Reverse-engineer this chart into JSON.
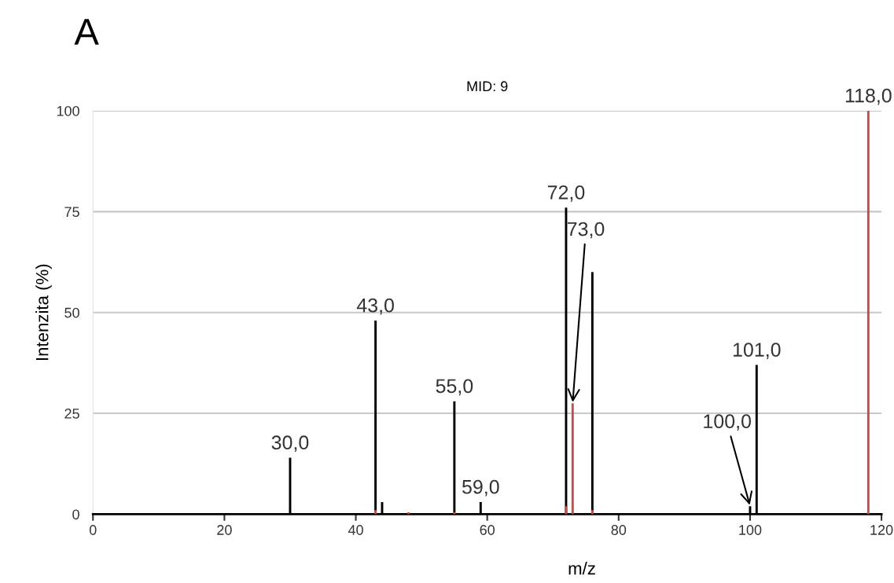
{
  "chart_data": {
    "type": "bar",
    "title": "MID: 9",
    "xlabel": "m/z",
    "ylabel": "Intenzita (%)",
    "series": [
      {
        "color": "#000000",
        "x": [
          30,
          43,
          44,
          55,
          59,
          72,
          76,
          100,
          101
        ],
        "values": [
          14,
          48,
          3,
          28,
          3,
          76,
          60,
          2,
          37
        ]
      },
      {
        "color": "#c0504d",
        "x": [
          43,
          48,
          55,
          72,
          73,
          76,
          118
        ],
        "values": [
          1,
          0.5,
          0.5,
          2,
          27.5,
          1,
          100
        ]
      }
    ],
    "xlim": [
      0,
      120
    ],
    "xticks": [
      0,
      20,
      40,
      60,
      80,
      100,
      120
    ],
    "ylim": [
      0,
      100
    ],
    "yticks": [
      0,
      25,
      50,
      75,
      100
    ],
    "grid": "y",
    "annotations": [
      "A",
      {
        "text": "30,0",
        "x": 30,
        "y": 14
      },
      {
        "text": "43,0",
        "x": 43,
        "y": 48
      },
      {
        "text": "55,0",
        "x": 55,
        "y": 28
      },
      {
        "text": "59,0",
        "x": 59,
        "y": 3
      },
      {
        "text": "72,0",
        "x": 72,
        "y": 76
      },
      {
        "text": "73,0",
        "x": 73,
        "y": 27.5
      },
      {
        "text": "100,0",
        "x": 100,
        "y": 2
      },
      {
        "text": "101,0",
        "x": 101,
        "y": 37
      },
      {
        "text": "118,0",
        "x": 118,
        "y": 100
      }
    ]
  }
}
